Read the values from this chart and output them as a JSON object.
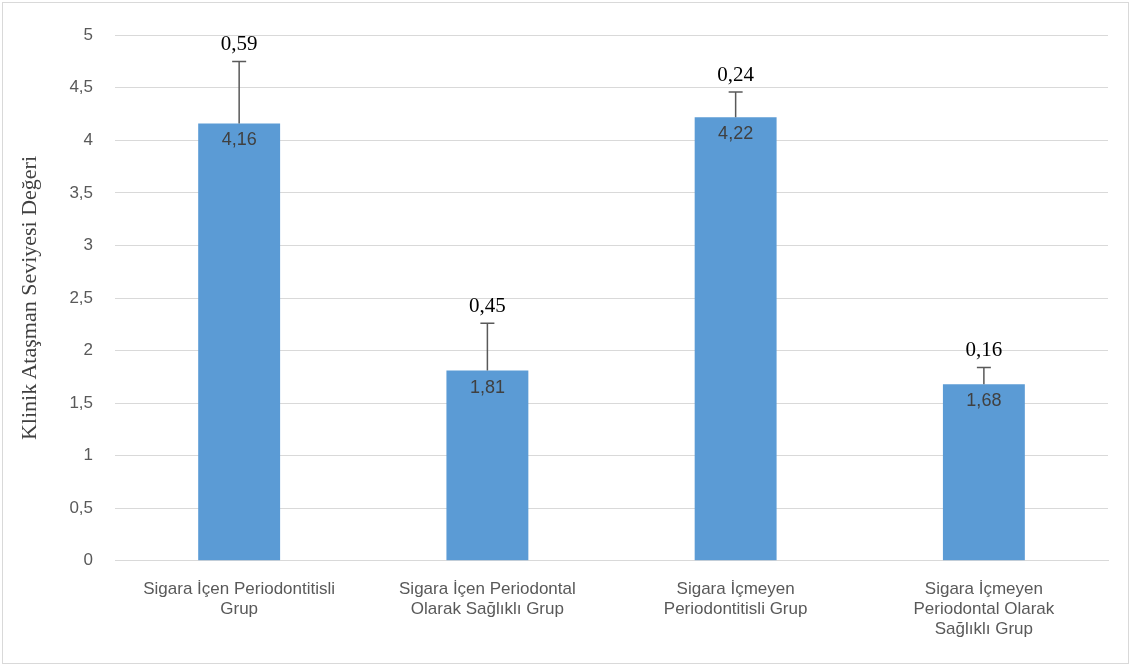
{
  "chart_data": {
    "type": "bar",
    "ylabel": "Klinik Ataşman Seviyesi Değeri",
    "categories": [
      "Sigara İçen Periodontitisli Grup",
      "Sigara İçen Periodontal Olarak Sağlıklı Grup",
      "Sigara İçmeyen Periodontitisli Grup",
      "Sigara İçmeyen Periodontal Olarak Sağlıklı Grup"
    ],
    "values": [
      4.16,
      1.81,
      4.22,
      1.68
    ],
    "color": "#5b9bd5",
    "errors": [
      [
        4.16,
        4.75
      ],
      [
        1.81,
        2.26
      ],
      [
        4.22,
        4.46
      ],
      [
        1.68,
        1.84
      ]
    ],
    "value_labels": [
      "4,16",
      "1,81",
      "4,22",
      "1,68"
    ],
    "annotations": [
      {
        "text": "0,59",
        "x": "Sigara İçen Periodontitisli Grup",
        "y": 4.75
      },
      {
        "text": "0,45",
        "x": "Sigara İçen Periodontal Olarak Sağlıklı Grup",
        "y": 2.26
      },
      {
        "text": "0,24",
        "x": "Sigara İçmeyen Periodontitisli Grup",
        "y": 4.46
      },
      {
        "text": "0,16",
        "x": "Sigara İçmeyen Periodontal Olarak Sağlıklı Grup",
        "y": 1.84
      }
    ],
    "ylim": [
      0,
      5
    ],
    "yticks": [
      {
        "value": 0,
        "label": "0"
      },
      {
        "value": 0.5,
        "label": "0,5"
      },
      {
        "value": 1,
        "label": "1"
      },
      {
        "value": 1.5,
        "label": "1,5"
      },
      {
        "value": 2,
        "label": "2"
      },
      {
        "value": 2.5,
        "label": "2,5"
      },
      {
        "value": 3,
        "label": "3"
      },
      {
        "value": 3.5,
        "label": "3,5"
      },
      {
        "value": 4,
        "label": "4"
      },
      {
        "value": 4.5,
        "label": "4,5"
      },
      {
        "value": 5,
        "label": "5"
      }
    ],
    "grid": "y",
    "legend": false
  }
}
